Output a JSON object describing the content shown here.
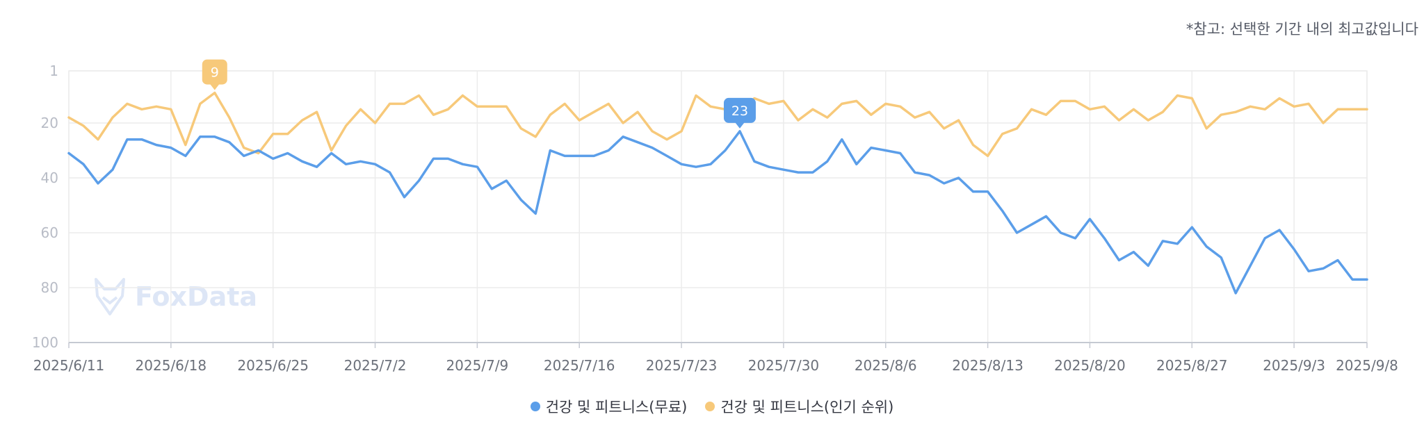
{
  "note": "*참고: 선택한 기간 내의 최고값입니다",
  "watermark": "FoxData",
  "chart_data": {
    "type": "line",
    "y_axis": {
      "ticks": [
        1,
        20,
        40,
        60,
        80,
        100
      ],
      "min": 1,
      "max": 100,
      "inverted": true
    },
    "x_tick_labels": [
      "2025/6/11",
      "2025/6/18",
      "2025/6/25",
      "2025/7/2",
      "2025/7/9",
      "2025/7/16",
      "2025/7/23",
      "2025/7/30",
      "2025/8/6",
      "2025/8/13",
      "2025/8/20",
      "2025/8/27",
      "2025/9/3",
      "2025/9/8"
    ],
    "x_tick_index": [
      0,
      7,
      14,
      21,
      28,
      35,
      42,
      49,
      56,
      63,
      70,
      77,
      84,
      89
    ],
    "grid": true,
    "legend_position": "bottom",
    "series": [
      {
        "name": "건강 및 피트니스(무료)",
        "color": "#5b9ee9",
        "peak": {
          "index": 46,
          "label": "23"
        },
        "values": [
          31,
          35,
          42,
          37,
          26,
          26,
          28,
          29,
          32,
          25,
          25,
          27,
          32,
          30,
          33,
          31,
          34,
          36,
          31,
          35,
          34,
          35,
          38,
          47,
          41,
          33,
          33,
          35,
          36,
          44,
          41,
          48,
          53,
          30,
          32,
          32,
          32,
          30,
          25,
          27,
          29,
          32,
          35,
          36,
          35,
          30,
          23,
          34,
          36,
          37,
          38,
          38,
          34,
          26,
          35,
          29,
          30,
          31,
          38,
          39,
          42,
          40,
          45,
          45,
          52,
          60,
          57,
          54,
          60,
          62,
          55,
          62,
          70,
          67,
          72,
          63,
          64,
          58,
          65,
          69,
          82,
          72,
          62,
          59,
          66,
          74,
          73,
          70,
          77,
          77
        ]
      },
      {
        "name": "건강 및 피트니스(인기 순위)",
        "color": "#f7c97a",
        "peak": {
          "index": 10,
          "label": "9"
        },
        "values": [
          18,
          21,
          26,
          18,
          13,
          15,
          14,
          15,
          28,
          13,
          9,
          18,
          29,
          31,
          24,
          24,
          19,
          16,
          30,
          21,
          15,
          20,
          13,
          13,
          10,
          17,
          15,
          10,
          14,
          14,
          14,
          22,
          25,
          17,
          13,
          19,
          16,
          13,
          20,
          16,
          23,
          26,
          23,
          10,
          14,
          15,
          16,
          11,
          13,
          12,
          19,
          15,
          18,
          13,
          12,
          17,
          13,
          14,
          18,
          16,
          22,
          19,
          28,
          32,
          24,
          22,
          15,
          17,
          12,
          12,
          15,
          14,
          19,
          15,
          19,
          16,
          10,
          11,
          22,
          17,
          16,
          14,
          15,
          11,
          14,
          13,
          20,
          15,
          15,
          15
        ]
      }
    ]
  }
}
